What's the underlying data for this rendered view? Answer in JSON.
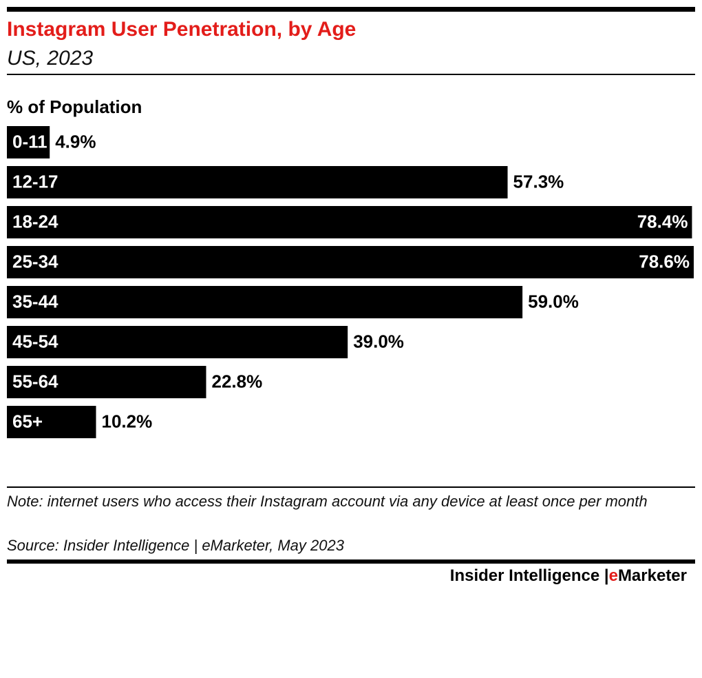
{
  "chart_data": {
    "type": "bar",
    "orientation": "horizontal",
    "title": "Instagram User Penetration, by Age",
    "subtitle": "US, 2023",
    "axis_label": "% of Population",
    "categories": [
      "0-11",
      "12-17",
      "18-24",
      "25-34",
      "35-44",
      "45-54",
      "55-64",
      "65+"
    ],
    "values": [
      4.9,
      57.3,
      78.4,
      78.6,
      59.0,
      39.0,
      22.8,
      10.2
    ],
    "value_labels": [
      "4.9%",
      "57.3%",
      "78.4%",
      "78.6%",
      "59.0%",
      "39.0%",
      "22.8%",
      "10.2%"
    ],
    "color": "#000000",
    "xlim": [
      0,
      78.6
    ],
    "note": "Note: internet users who access their Instagram account via any device at least once per month",
    "source": "Source: Insider Intelligence | eMarketer, May 2023",
    "brand": {
      "main": "Insider Intelligence |",
      "accent": "e",
      "rest": "Marketer"
    }
  }
}
